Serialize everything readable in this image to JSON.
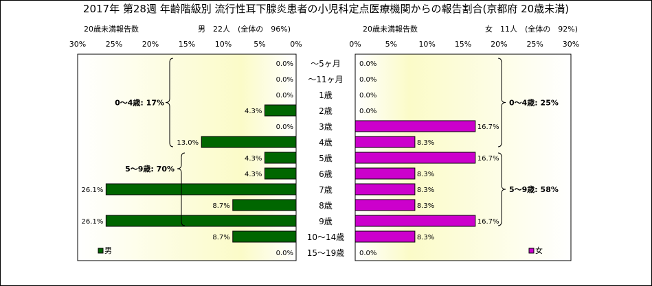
{
  "title": "2017年 第28週 年齢階級別 流行性耳下腺炎患者の小児科定点医療機関からの報告割合(京都府 20歳未満)",
  "chart_data": [
    {
      "type": "bar",
      "panel": "male",
      "header_left": "20歳未満報告数",
      "header_right": "男　22人　(全体の　96%)",
      "legend": "男",
      "orientation": "horizontal",
      "direction": "right-to-left",
      "xlim": [
        0,
        30
      ],
      "xticks": [
        "30%",
        "25%",
        "20%",
        "15%",
        "10%",
        "5%",
        "0%"
      ],
      "bar_color": "#006600",
      "values": [
        0.0,
        0.0,
        0.0,
        4.3,
        0.0,
        13.0,
        4.3,
        4.3,
        26.1,
        8.7,
        26.1,
        8.7,
        0.0
      ],
      "labels": [
        "0.0%",
        "0.0%",
        "0.0%",
        "4.3%",
        "0.0%",
        "13.0%",
        "4.3%",
        "4.3%",
        "26.1%",
        "8.7%",
        "26.1%",
        "8.7%",
        "0.0%"
      ],
      "groups": [
        {
          "label": "0～4歳: 17%",
          "from": 0,
          "to": 5
        },
        {
          "label": "5～9歳: 70%",
          "from": 6,
          "to": 10
        }
      ]
    },
    {
      "type": "bar",
      "panel": "female",
      "header_left": "20歳未満報告数",
      "header_right": "女　11人　(全体の　92%)",
      "legend": "女",
      "orientation": "horizontal",
      "direction": "left-to-right",
      "xlim": [
        0,
        30
      ],
      "xticks": [
        "0%",
        "5%",
        "10%",
        "15%",
        "20%",
        "25%",
        "30%"
      ],
      "bar_color": "#CC00CC",
      "values": [
        0.0,
        0.0,
        0.0,
        0.0,
        16.7,
        8.3,
        16.7,
        8.3,
        8.3,
        8.3,
        16.7,
        8.3,
        0.0
      ],
      "labels": [
        "0.0%",
        "0.0%",
        "0.0%",
        "0.0%",
        "16.7%",
        "8.3%",
        "16.7%",
        "8.3%",
        "8.3%",
        "8.3%",
        "16.7%",
        "8.3%",
        "0.0%"
      ],
      "groups": [
        {
          "label": "0～4歳: 25%",
          "from": 0,
          "to": 5
        },
        {
          "label": "5～9歳: 58%",
          "from": 6,
          "to": 10
        }
      ]
    }
  ],
  "categories": [
    "～5ヶ月",
    "～11ヶ月",
    "1歳",
    "2歳",
    "3歳",
    "4歳",
    "5歳",
    "6歳",
    "7歳",
    "8歳",
    "9歳",
    "10～14歳",
    "15～19歳"
  ]
}
